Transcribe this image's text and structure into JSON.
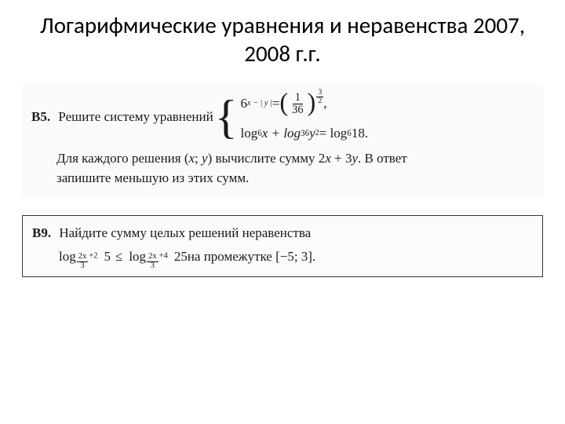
{
  "title": "Логарифмические уравнения и неравенства 2007, 2008 г.г.",
  "b5": {
    "label": "В5.",
    "prompt": "Решите систему уравнений",
    "eq1": {
      "base": "6",
      "exp": "x − | y |",
      "eq": " = ",
      "rhs_frac_num": "1",
      "rhs_frac_den": "36",
      "rhs_exp_num": "3",
      "rhs_exp_den": "2",
      "tail": ","
    },
    "eq2": {
      "t1": "log",
      "b1": "6",
      "a1": " x + log",
      "b2": "36",
      "a2": " y",
      "sq": "2",
      "eq": " = log",
      "b3": "6",
      "a3": " 18."
    },
    "follow1a": "Для каждого решения (",
    "follow1b": "x",
    "follow1c": "; ",
    "follow1d": "y",
    "follow1e": ") вычислите сумму 2",
    "follow1f": "x",
    "follow1g": " + 3",
    "follow1h": "y",
    "follow1i": ". В ответ",
    "follow2": "запишите меньшую из этих сумм."
  },
  "b9": {
    "label": "В9.",
    "prompt": "Найдите сумму целых решений неравенства",
    "log": "log",
    "base1_num": "2x",
    "base1_den": "3",
    "base1_add": "+2",
    "arg1": "5",
    "le": "≤",
    "base2_num": "2x",
    "base2_den": "3",
    "base2_add": "+4",
    "arg2": "25",
    "interval_text": " на промежутке [−5; 3]."
  },
  "colors": {
    "text": "#1a1a1a",
    "background": "#ffffff",
    "block_bg": "#fafafa",
    "border": "#333333"
  }
}
